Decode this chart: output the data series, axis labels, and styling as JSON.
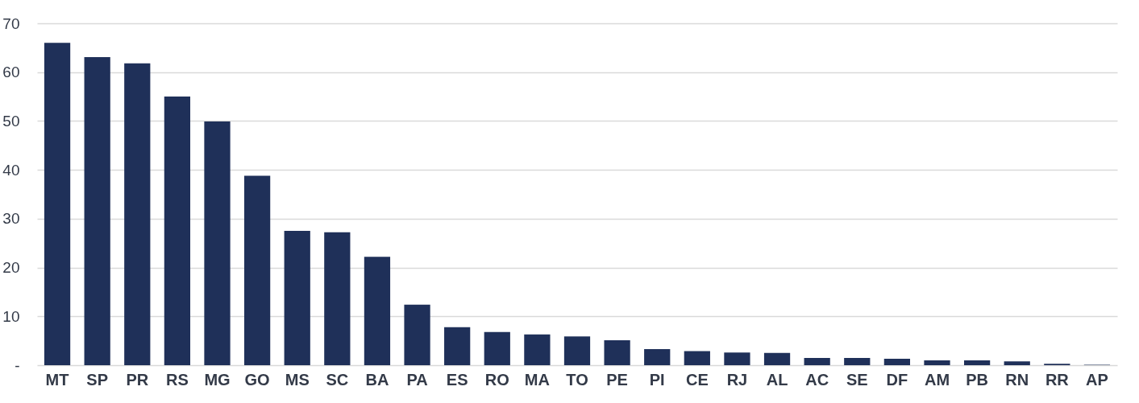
{
  "chart_data": {
    "type": "bar",
    "categories": [
      "MT",
      "SP",
      "PR",
      "RS",
      "MG",
      "GO",
      "MS",
      "SC",
      "BA",
      "PA",
      "ES",
      "RO",
      "MA",
      "TO",
      "PE",
      "PI",
      "CE",
      "RJ",
      "AL",
      "AC",
      "SE",
      "DF",
      "AM",
      "PB",
      "RN",
      "RR",
      "AP"
    ],
    "values": [
      66,
      63.1,
      61.8,
      55,
      49.9,
      38.8,
      27.5,
      27.2,
      22.2,
      12.4,
      7.8,
      6.8,
      6.3,
      5.9,
      5.1,
      3.3,
      2.9,
      2.6,
      2.5,
      1.5,
      1.5,
      1.3,
      1.0,
      1.0,
      0.8,
      0.3,
      0.1
    ],
    "color": "#1f3059",
    "ylim": [
      0,
      70
    ],
    "yticks": [
      {
        "value": 0,
        "label": "-"
      },
      10,
      20,
      30,
      40,
      50,
      60,
      70
    ],
    "grid": "y"
  }
}
